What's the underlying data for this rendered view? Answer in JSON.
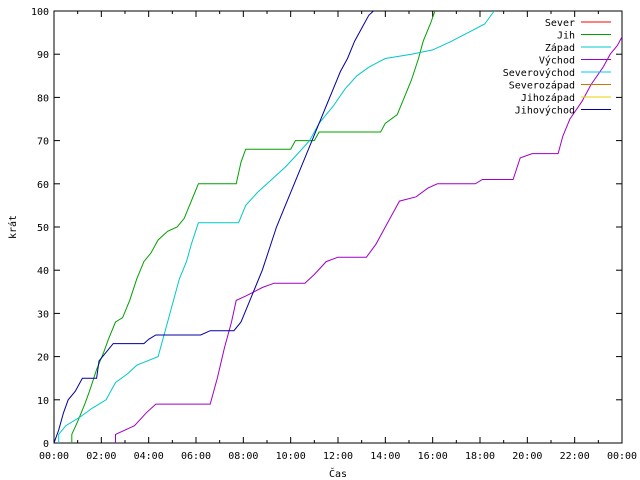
{
  "chart_data": {
    "type": "line",
    "title": "",
    "xlabel": "Čas",
    "ylabel": "krát",
    "xlim": [
      0,
      24
    ],
    "ylim": [
      0,
      100
    ],
    "x_unit": "hours",
    "xtick_values": [
      0,
      2,
      4,
      6,
      8,
      10,
      12,
      14,
      16,
      18,
      20,
      22,
      24
    ],
    "xtick_labels": [
      "00:00",
      "02:00",
      "04:00",
      "06:00",
      "08:00",
      "10:00",
      "12:00",
      "14:00",
      "16:00",
      "18:00",
      "20:00",
      "22:00",
      "00:00"
    ],
    "ytick_values": [
      0,
      10,
      20,
      30,
      40,
      50,
      60,
      70,
      80,
      90,
      100
    ],
    "ytick_labels": [
      "0",
      "10",
      "20",
      "30",
      "40",
      "50",
      "60",
      "70",
      "80",
      "90",
      "100"
    ],
    "grid": false,
    "legend_position": "top-right",
    "series": [
      {
        "name": "Sever",
        "color": "#ff0000",
        "points": []
      },
      {
        "name": "Jih",
        "color": "#00a000",
        "points": [
          [
            0.75,
            0
          ],
          [
            0.75,
            2
          ],
          [
            1.0,
            5
          ],
          [
            1.3,
            9
          ],
          [
            1.5,
            12
          ],
          [
            1.8,
            17
          ],
          [
            2.1,
            21
          ],
          [
            2.3,
            24
          ],
          [
            2.6,
            28
          ],
          [
            2.9,
            29
          ],
          [
            3.2,
            33
          ],
          [
            3.5,
            38
          ],
          [
            3.8,
            42
          ],
          [
            4.1,
            44
          ],
          [
            4.4,
            47
          ],
          [
            4.8,
            49
          ],
          [
            5.2,
            50
          ],
          [
            5.5,
            52
          ],
          [
            5.8,
            56
          ],
          [
            6.1,
            60
          ],
          [
            7.7,
            60
          ],
          [
            7.9,
            65
          ],
          [
            8.1,
            68
          ],
          [
            10.0,
            68
          ],
          [
            10.2,
            70
          ],
          [
            11.0,
            70
          ],
          [
            11.2,
            72
          ],
          [
            13.8,
            72
          ],
          [
            14.0,
            74
          ],
          [
            14.5,
            76
          ],
          [
            14.8,
            80
          ],
          [
            15.1,
            84
          ],
          [
            15.4,
            89
          ],
          [
            15.6,
            93
          ],
          [
            15.9,
            97
          ],
          [
            16.1,
            100
          ]
        ]
      },
      {
        "name": "Západ",
        "color": "#00c8c8",
        "points": [
          [
            0.2,
            0
          ],
          [
            0.2,
            2
          ],
          [
            0.5,
            4
          ],
          [
            1.1,
            6
          ],
          [
            1.6,
            8
          ],
          [
            2.2,
            10
          ],
          [
            2.6,
            14
          ],
          [
            3.1,
            16
          ],
          [
            3.5,
            18
          ],
          [
            4.4,
            20
          ],
          [
            4.7,
            26
          ],
          [
            5.0,
            32
          ],
          [
            5.3,
            38
          ],
          [
            5.6,
            42
          ],
          [
            5.8,
            46
          ],
          [
            6.1,
            51
          ],
          [
            7.8,
            51
          ],
          [
            8.1,
            55
          ],
          [
            8.6,
            58
          ],
          [
            9.2,
            61
          ],
          [
            9.8,
            64
          ],
          [
            10.3,
            67
          ],
          [
            10.8,
            70
          ],
          [
            11.2,
            74
          ],
          [
            11.8,
            78
          ],
          [
            12.3,
            82
          ],
          [
            12.8,
            85
          ],
          [
            13.3,
            87
          ],
          [
            14.0,
            89
          ],
          [
            15.1,
            90
          ],
          [
            16.0,
            91
          ],
          [
            16.8,
            93
          ],
          [
            17.5,
            95
          ],
          [
            18.2,
            97
          ],
          [
            18.6,
            100
          ]
        ]
      },
      {
        "name": "Východ",
        "color": "#a000c8",
        "points": [
          [
            2.6,
            0
          ],
          [
            2.6,
            2
          ],
          [
            3.4,
            4
          ],
          [
            3.9,
            7
          ],
          [
            4.3,
            9
          ],
          [
            6.6,
            9
          ],
          [
            6.9,
            15
          ],
          [
            7.2,
            22
          ],
          [
            7.5,
            28
          ],
          [
            7.7,
            33
          ],
          [
            8.1,
            34
          ],
          [
            8.8,
            36
          ],
          [
            9.3,
            37
          ],
          [
            10.6,
            37
          ],
          [
            11.0,
            39
          ],
          [
            11.5,
            42
          ],
          [
            12.0,
            43
          ],
          [
            13.2,
            43
          ],
          [
            13.6,
            46
          ],
          [
            14.0,
            50
          ],
          [
            14.3,
            53
          ],
          [
            14.6,
            56
          ],
          [
            15.3,
            57
          ],
          [
            15.8,
            59
          ],
          [
            16.2,
            60
          ],
          [
            17.8,
            60
          ],
          [
            18.1,
            61
          ],
          [
            19.4,
            61
          ],
          [
            19.7,
            66
          ],
          [
            20.2,
            67
          ],
          [
            21.3,
            67
          ],
          [
            21.5,
            71
          ],
          [
            21.8,
            75
          ],
          [
            22.3,
            79
          ],
          [
            22.7,
            83
          ],
          [
            23.2,
            87
          ],
          [
            23.5,
            90
          ],
          [
            23.8,
            92
          ],
          [
            24.0,
            94
          ]
        ]
      },
      {
        "name": "Severovýchod",
        "color": "#00c8ff",
        "points": []
      },
      {
        "name": "Severozápad",
        "color": "#c87800",
        "points": []
      },
      {
        "name": "Jihozápad",
        "color": "#e8d000",
        "points": []
      },
      {
        "name": "Jihovýchod",
        "color": "#0000a0",
        "points": [
          [
            0,
            0
          ],
          [
            0.2,
            3
          ],
          [
            0.4,
            7
          ],
          [
            0.6,
            10
          ],
          [
            0.9,
            12
          ],
          [
            1.2,
            15
          ],
          [
            1.8,
            15
          ],
          [
            1.9,
            19
          ],
          [
            2.2,
            21
          ],
          [
            2.5,
            23
          ],
          [
            3.8,
            23
          ],
          [
            4.0,
            24
          ],
          [
            4.3,
            25
          ],
          [
            6.2,
            25
          ],
          [
            6.6,
            26
          ],
          [
            7.6,
            26
          ],
          [
            7.9,
            28
          ],
          [
            8.2,
            32
          ],
          [
            8.5,
            36
          ],
          [
            8.8,
            40
          ],
          [
            9.1,
            45
          ],
          [
            9.4,
            50
          ],
          [
            9.7,
            54
          ],
          [
            10.0,
            58
          ],
          [
            10.3,
            62
          ],
          [
            10.6,
            66
          ],
          [
            10.9,
            70
          ],
          [
            11.2,
            74
          ],
          [
            11.5,
            78
          ],
          [
            11.8,
            82
          ],
          [
            12.1,
            86
          ],
          [
            12.4,
            89
          ],
          [
            12.7,
            93
          ],
          [
            13.0,
            96
          ],
          [
            13.3,
            99
          ],
          [
            13.5,
            100
          ]
        ]
      }
    ]
  }
}
